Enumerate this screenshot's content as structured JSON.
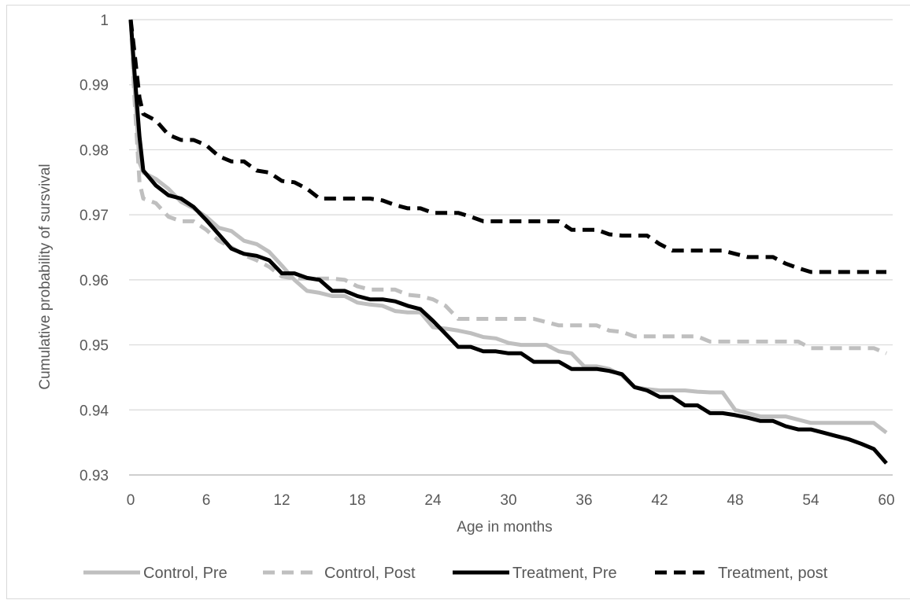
{
  "chart_data": {
    "type": "line",
    "title": "",
    "xlabel": "Age in months",
    "ylabel": "Cumulative probability of sursvival",
    "xlim": [
      0,
      60
    ],
    "ylim": [
      0.93,
      1
    ],
    "x_ticks": [
      "0",
      "6",
      "12",
      "18",
      "24",
      "30",
      "36",
      "42",
      "48",
      "54",
      "60"
    ],
    "x_tick_values": [
      0,
      6,
      12,
      18,
      24,
      30,
      36,
      42,
      48,
      54,
      60
    ],
    "y_ticks": [
      "0.93",
      "0.94",
      "0.95",
      "0.96",
      "0.97",
      "0.98",
      "0.99",
      "1"
    ],
    "y_tick_values": [
      0.93,
      0.94,
      0.95,
      0.96,
      0.97,
      0.98,
      0.99,
      1.0
    ],
    "grid": "horizontal",
    "legend_position": "bottom",
    "series": [
      {
        "name": "Control, Pre",
        "color": "#bfbfbf",
        "dash": "solid",
        "x": [
          0,
          0.3,
          0.7,
          1,
          2,
          3,
          4,
          5,
          6,
          7,
          8,
          9,
          10,
          11,
          12,
          13,
          14,
          15,
          16,
          17,
          18,
          19,
          20,
          21,
          22,
          23,
          24,
          25,
          26,
          27,
          28,
          29,
          30,
          31,
          32,
          33,
          34,
          35,
          36,
          37,
          38,
          39,
          40,
          41,
          42,
          43,
          44,
          45,
          46,
          47,
          48,
          49,
          50,
          51,
          52,
          53,
          54,
          55,
          56,
          57,
          58,
          59,
          60
        ],
        "y": [
          1.0,
          0.99,
          0.978,
          0.9765,
          0.9755,
          0.974,
          0.972,
          0.971,
          0.9697,
          0.968,
          0.9675,
          0.966,
          0.9655,
          0.9643,
          0.9622,
          0.96,
          0.9583,
          0.958,
          0.9575,
          0.9575,
          0.9565,
          0.9562,
          0.956,
          0.9552,
          0.955,
          0.955,
          0.9527,
          0.9525,
          0.9522,
          0.9518,
          0.9512,
          0.951,
          0.9503,
          0.95,
          0.95,
          0.95,
          0.949,
          0.9487,
          0.9467,
          0.9467,
          0.9463,
          0.9453,
          0.9435,
          0.9432,
          0.943,
          0.943,
          0.943,
          0.9428,
          0.9427,
          0.9427,
          0.94,
          0.9395,
          0.939,
          0.939,
          0.939,
          0.9385,
          0.938,
          0.938,
          0.938,
          0.938,
          0.938,
          0.938,
          0.9365
        ]
      },
      {
        "name": "Control, Post",
        "color": "#bfbfbf",
        "dash": "dashed",
        "x": [
          0,
          0.3,
          0.7,
          1,
          2,
          3,
          4,
          5,
          6,
          7,
          8,
          9,
          10,
          11,
          12,
          13,
          14,
          15,
          16,
          17,
          18,
          19,
          20,
          21,
          22,
          23,
          24,
          25,
          26,
          27,
          28,
          29,
          30,
          31,
          32,
          33,
          34,
          35,
          36,
          37,
          38,
          39,
          40,
          41,
          42,
          43,
          44,
          45,
          46,
          47,
          48,
          49,
          50,
          51,
          52,
          53,
          54,
          55,
          56,
          57,
          58,
          59,
          60
        ],
        "y": [
          1.0,
          0.988,
          0.975,
          0.9725,
          0.9718,
          0.9697,
          0.969,
          0.969,
          0.9677,
          0.966,
          0.965,
          0.9638,
          0.963,
          0.962,
          0.9605,
          0.9602,
          0.9602,
          0.9602,
          0.9602,
          0.96,
          0.959,
          0.9585,
          0.9585,
          0.9585,
          0.9577,
          0.9575,
          0.957,
          0.956,
          0.954,
          0.954,
          0.954,
          0.954,
          0.954,
          0.954,
          0.954,
          0.9535,
          0.953,
          0.953,
          0.953,
          0.953,
          0.9522,
          0.952,
          0.9513,
          0.9513,
          0.9513,
          0.9513,
          0.9513,
          0.9513,
          0.9505,
          0.9505,
          0.9505,
          0.9505,
          0.9505,
          0.9505,
          0.9505,
          0.9505,
          0.9495,
          0.9495,
          0.9495,
          0.9495,
          0.9495,
          0.9495,
          0.9487
        ]
      },
      {
        "name": "Treatment, Pre",
        "color": "#000000",
        "dash": "solid",
        "x": [
          0,
          0.3,
          0.7,
          1,
          2,
          3,
          4,
          5,
          6,
          7,
          8,
          9,
          10,
          11,
          12,
          13,
          14,
          15,
          16,
          17,
          18,
          19,
          20,
          21,
          22,
          23,
          24,
          25,
          26,
          27,
          28,
          29,
          30,
          31,
          32,
          33,
          34,
          35,
          36,
          37,
          38,
          39,
          40,
          41,
          42,
          43,
          44,
          45,
          46,
          47,
          48,
          49,
          50,
          51,
          52,
          53,
          54,
          55,
          56,
          57,
          58,
          59,
          60
        ],
        "y": [
          1.0,
          0.992,
          0.982,
          0.9768,
          0.9745,
          0.973,
          0.9725,
          0.9712,
          0.9692,
          0.967,
          0.9648,
          0.964,
          0.9637,
          0.963,
          0.961,
          0.961,
          0.9603,
          0.96,
          0.9583,
          0.9583,
          0.9575,
          0.957,
          0.957,
          0.9567,
          0.956,
          0.9555,
          0.9537,
          0.9517,
          0.9497,
          0.9497,
          0.949,
          0.949,
          0.9487,
          0.9487,
          0.9474,
          0.9474,
          0.9474,
          0.9463,
          0.9463,
          0.9463,
          0.946,
          0.9455,
          0.9435,
          0.943,
          0.942,
          0.942,
          0.9407,
          0.9407,
          0.9395,
          0.9395,
          0.9392,
          0.9388,
          0.9383,
          0.9383,
          0.9375,
          0.937,
          0.937,
          0.9365,
          0.936,
          0.9355,
          0.9348,
          0.934,
          0.9318
        ]
      },
      {
        "name": "Treatment, post",
        "color": "#000000",
        "dash": "dashed",
        "x": [
          0,
          0.3,
          0.7,
          1,
          2,
          3,
          4,
          5,
          6,
          7,
          8,
          9,
          10,
          11,
          12,
          13,
          14,
          15,
          16,
          17,
          18,
          19,
          20,
          21,
          22,
          23,
          24,
          25,
          26,
          27,
          28,
          29,
          30,
          31,
          32,
          33,
          34,
          35,
          36,
          37,
          38,
          39,
          40,
          41,
          42,
          43,
          44,
          45,
          46,
          47,
          48,
          49,
          50,
          51,
          52,
          53,
          54,
          55,
          56,
          57,
          58,
          59,
          60
        ],
        "y": [
          1.0,
          0.995,
          0.988,
          0.9855,
          0.9845,
          0.9823,
          0.9815,
          0.9815,
          0.9807,
          0.979,
          0.9782,
          0.9782,
          0.9768,
          0.9765,
          0.9752,
          0.975,
          0.974,
          0.9725,
          0.9725,
          0.9725,
          0.9725,
          0.9725,
          0.9722,
          0.9715,
          0.971,
          0.971,
          0.9703,
          0.9703,
          0.9703,
          0.9697,
          0.969,
          0.969,
          0.969,
          0.969,
          0.969,
          0.969,
          0.969,
          0.9677,
          0.9677,
          0.9677,
          0.967,
          0.9668,
          0.9668,
          0.9668,
          0.9655,
          0.9645,
          0.9645,
          0.9645,
          0.9645,
          0.9645,
          0.964,
          0.9635,
          0.9635,
          0.9635,
          0.9625,
          0.9618,
          0.9612,
          0.9612,
          0.9612,
          0.9612,
          0.9612,
          0.9612,
          0.9612
        ]
      }
    ]
  }
}
